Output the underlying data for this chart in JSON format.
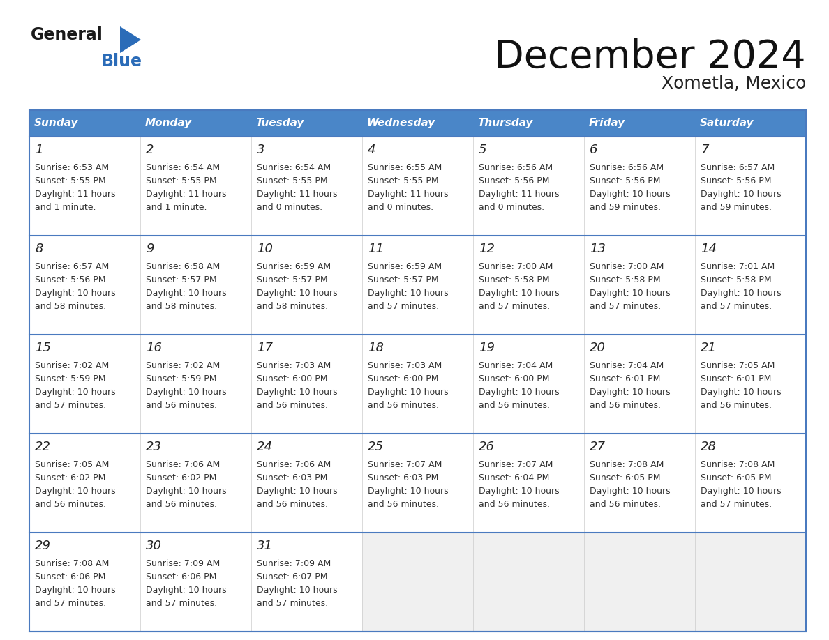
{
  "title": "December 2024",
  "subtitle": "Xometla, Mexico",
  "header_color": "#4a86c8",
  "header_text_color": "#FFFFFF",
  "day_names": [
    "Sunday",
    "Monday",
    "Tuesday",
    "Wednesday",
    "Thursday",
    "Friday",
    "Saturday"
  ],
  "grid_line_color": "#4a7abf",
  "cell_bg_color": "#FFFFFF",
  "empty_cell_bg": "#f0f0f0",
  "day_num_color": "#222222",
  "text_color": "#333333",
  "logo_general_color": "#1a1a1a",
  "logo_blue_color": "#2b6cb8",
  "calendar_data": [
    [
      {
        "day": 1,
        "sunrise": "6:53 AM",
        "sunset": "5:55 PM",
        "daylight_h": "11 hours",
        "daylight_m": "and 1 minute."
      },
      {
        "day": 2,
        "sunrise": "6:54 AM",
        "sunset": "5:55 PM",
        "daylight_h": "11 hours",
        "daylight_m": "and 1 minute."
      },
      {
        "day": 3,
        "sunrise": "6:54 AM",
        "sunset": "5:55 PM",
        "daylight_h": "11 hours",
        "daylight_m": "and 0 minutes."
      },
      {
        "day": 4,
        "sunrise": "6:55 AM",
        "sunset": "5:55 PM",
        "daylight_h": "11 hours",
        "daylight_m": "and 0 minutes."
      },
      {
        "day": 5,
        "sunrise": "6:56 AM",
        "sunset": "5:56 PM",
        "daylight_h": "11 hours",
        "daylight_m": "and 0 minutes."
      },
      {
        "day": 6,
        "sunrise": "6:56 AM",
        "sunset": "5:56 PM",
        "daylight_h": "10 hours",
        "daylight_m": "and 59 minutes."
      },
      {
        "day": 7,
        "sunrise": "6:57 AM",
        "sunset": "5:56 PM",
        "daylight_h": "10 hours",
        "daylight_m": "and 59 minutes."
      }
    ],
    [
      {
        "day": 8,
        "sunrise": "6:57 AM",
        "sunset": "5:56 PM",
        "daylight_h": "10 hours",
        "daylight_m": "and 58 minutes."
      },
      {
        "day": 9,
        "sunrise": "6:58 AM",
        "sunset": "5:57 PM",
        "daylight_h": "10 hours",
        "daylight_m": "and 58 minutes."
      },
      {
        "day": 10,
        "sunrise": "6:59 AM",
        "sunset": "5:57 PM",
        "daylight_h": "10 hours",
        "daylight_m": "and 58 minutes."
      },
      {
        "day": 11,
        "sunrise": "6:59 AM",
        "sunset": "5:57 PM",
        "daylight_h": "10 hours",
        "daylight_m": "and 57 minutes."
      },
      {
        "day": 12,
        "sunrise": "7:00 AM",
        "sunset": "5:58 PM",
        "daylight_h": "10 hours",
        "daylight_m": "and 57 minutes."
      },
      {
        "day": 13,
        "sunrise": "7:00 AM",
        "sunset": "5:58 PM",
        "daylight_h": "10 hours",
        "daylight_m": "and 57 minutes."
      },
      {
        "day": 14,
        "sunrise": "7:01 AM",
        "sunset": "5:58 PM",
        "daylight_h": "10 hours",
        "daylight_m": "and 57 minutes."
      }
    ],
    [
      {
        "day": 15,
        "sunrise": "7:02 AM",
        "sunset": "5:59 PM",
        "daylight_h": "10 hours",
        "daylight_m": "and 57 minutes."
      },
      {
        "day": 16,
        "sunrise": "7:02 AM",
        "sunset": "5:59 PM",
        "daylight_h": "10 hours",
        "daylight_m": "and 56 minutes."
      },
      {
        "day": 17,
        "sunrise": "7:03 AM",
        "sunset": "6:00 PM",
        "daylight_h": "10 hours",
        "daylight_m": "and 56 minutes."
      },
      {
        "day": 18,
        "sunrise": "7:03 AM",
        "sunset": "6:00 PM",
        "daylight_h": "10 hours",
        "daylight_m": "and 56 minutes."
      },
      {
        "day": 19,
        "sunrise": "7:04 AM",
        "sunset": "6:00 PM",
        "daylight_h": "10 hours",
        "daylight_m": "and 56 minutes."
      },
      {
        "day": 20,
        "sunrise": "7:04 AM",
        "sunset": "6:01 PM",
        "daylight_h": "10 hours",
        "daylight_m": "and 56 minutes."
      },
      {
        "day": 21,
        "sunrise": "7:05 AM",
        "sunset": "6:01 PM",
        "daylight_h": "10 hours",
        "daylight_m": "and 56 minutes."
      }
    ],
    [
      {
        "day": 22,
        "sunrise": "7:05 AM",
        "sunset": "6:02 PM",
        "daylight_h": "10 hours",
        "daylight_m": "and 56 minutes."
      },
      {
        "day": 23,
        "sunrise": "7:06 AM",
        "sunset": "6:02 PM",
        "daylight_h": "10 hours",
        "daylight_m": "and 56 minutes."
      },
      {
        "day": 24,
        "sunrise": "7:06 AM",
        "sunset": "6:03 PM",
        "daylight_h": "10 hours",
        "daylight_m": "and 56 minutes."
      },
      {
        "day": 25,
        "sunrise": "7:07 AM",
        "sunset": "6:03 PM",
        "daylight_h": "10 hours",
        "daylight_m": "and 56 minutes."
      },
      {
        "day": 26,
        "sunrise": "7:07 AM",
        "sunset": "6:04 PM",
        "daylight_h": "10 hours",
        "daylight_m": "and 56 minutes."
      },
      {
        "day": 27,
        "sunrise": "7:08 AM",
        "sunset": "6:05 PM",
        "daylight_h": "10 hours",
        "daylight_m": "and 56 minutes."
      },
      {
        "day": 28,
        "sunrise": "7:08 AM",
        "sunset": "6:05 PM",
        "daylight_h": "10 hours",
        "daylight_m": "and 57 minutes."
      }
    ],
    [
      {
        "day": 29,
        "sunrise": "7:08 AM",
        "sunset": "6:06 PM",
        "daylight_h": "10 hours",
        "daylight_m": "and 57 minutes."
      },
      {
        "day": 30,
        "sunrise": "7:09 AM",
        "sunset": "6:06 PM",
        "daylight_h": "10 hours",
        "daylight_m": "and 57 minutes."
      },
      {
        "day": 31,
        "sunrise": "7:09 AM",
        "sunset": "6:07 PM",
        "daylight_h": "10 hours",
        "daylight_m": "and 57 minutes."
      },
      null,
      null,
      null,
      null
    ]
  ]
}
